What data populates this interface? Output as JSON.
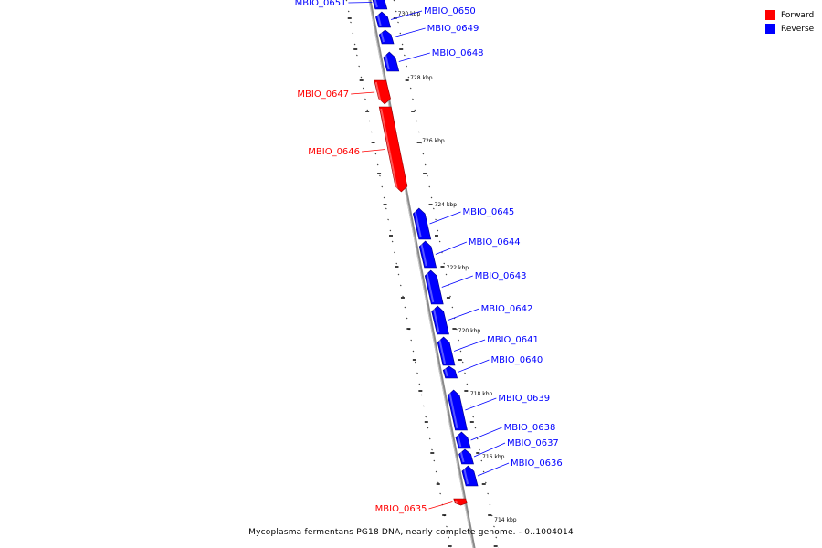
{
  "legend": {
    "forward_label": "Forward",
    "reverse_label": "Reverse",
    "forward_color": "#ff0000",
    "reverse_color": "#0000ff"
  },
  "caption": "Mycoplasma fermentans PG18 DNA, nearly complete genome. - 0..1004014",
  "tick_labels": [
    "730 kbp",
    "728 kbp",
    "726 kbp",
    "724 kbp",
    "722 kbp",
    "720 kbp",
    "718 kbp",
    "716 kbp",
    "714 kbp"
  ],
  "genes": [
    {
      "name": "MBIO_0651",
      "strand": "reverse"
    },
    {
      "name": "MBIO_0650",
      "strand": "reverse"
    },
    {
      "name": "MBIO_0649",
      "strand": "reverse"
    },
    {
      "name": "MBIO_0648",
      "strand": "reverse"
    },
    {
      "name": "MBIO_0647",
      "strand": "forward"
    },
    {
      "name": "MBIO_0646",
      "strand": "forward"
    },
    {
      "name": "MBIO_0645",
      "strand": "reverse"
    },
    {
      "name": "MBIO_0644",
      "strand": "reverse"
    },
    {
      "name": "MBIO_0643",
      "strand": "reverse"
    },
    {
      "name": "MBIO_0642",
      "strand": "reverse"
    },
    {
      "name": "MBIO_0641",
      "strand": "reverse"
    },
    {
      "name": "MBIO_0640",
      "strand": "reverse"
    },
    {
      "name": "MBIO_0639",
      "strand": "reverse"
    },
    {
      "name": "MBIO_0638",
      "strand": "reverse"
    },
    {
      "name": "MBIO_0637",
      "strand": "reverse"
    },
    {
      "name": "MBIO_0636",
      "strand": "reverse"
    },
    {
      "name": "MBIO_0635",
      "strand": "forward"
    }
  ]
}
